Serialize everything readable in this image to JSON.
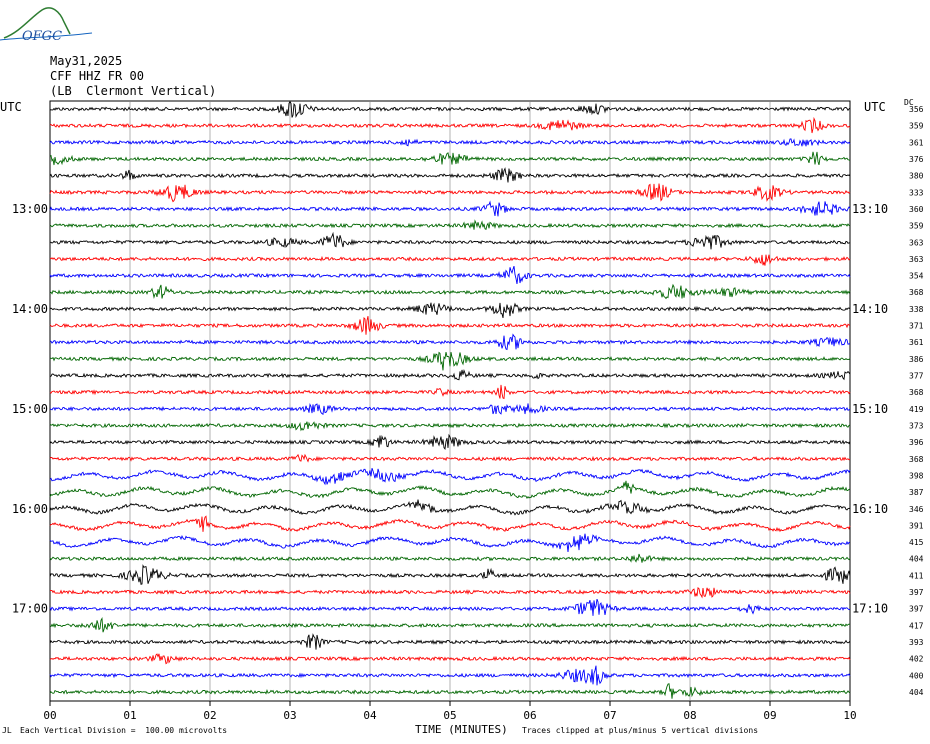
{
  "logo": {
    "text": "OFGC"
  },
  "header": {
    "date": "May31,2025",
    "station": "CFF HHZ FR 00",
    "location": "(LB  Clermont Vertical)"
  },
  "utc_left": "UTC",
  "utc_right": "UTC",
  "dc_label": "DC",
  "footer": {
    "corner_mark": "JL",
    "scale_note": "Each Vertical Division =  100.00 microvolts",
    "x_title": "TIME (MINUTES)",
    "clip_note": "Traces clipped at plus/minus 5 vertical divisions"
  },
  "colors": {
    "trace_cycle": [
      "#000000",
      "#ff0000",
      "#0000ff",
      "#006600"
    ],
    "grid": "#808080"
  },
  "chart_data": {
    "type": "line",
    "title": "",
    "xlabel": "TIME (MINUTES)",
    "x_ticks": [
      "00",
      "01",
      "02",
      "03",
      "04",
      "05",
      "06",
      "07",
      "08",
      "09",
      "10"
    ],
    "xlim": [
      0,
      10
    ],
    "left_time_labels": [
      {
        "row": 6,
        "label": "13:00"
      },
      {
        "row": 12,
        "label": "14:00"
      },
      {
        "row": 18,
        "label": "15:00"
      },
      {
        "row": 24,
        "label": "16:00"
      },
      {
        "row": 30,
        "label": "17:00"
      }
    ],
    "right_time_labels": [
      {
        "row": 6,
        "label": "13:10"
      },
      {
        "row": 12,
        "label": "14:10"
      },
      {
        "row": 18,
        "label": "15:10"
      },
      {
        "row": 24,
        "label": "16:10"
      },
      {
        "row": 30,
        "label": "17:10"
      }
    ],
    "dc_offsets": [
      "356",
      "359",
      "361",
      "376",
      "380",
      "333",
      "360",
      "359",
      "363",
      "363",
      "354",
      "368",
      "338",
      "371",
      "361",
      "386",
      "377",
      "368",
      "419",
      "373",
      "396",
      "368",
      "398",
      "387",
      "346",
      "391",
      "415",
      "404",
      "411",
      "397",
      "397",
      "417",
      "393",
      "402",
      "400",
      "404"
    ]
  }
}
